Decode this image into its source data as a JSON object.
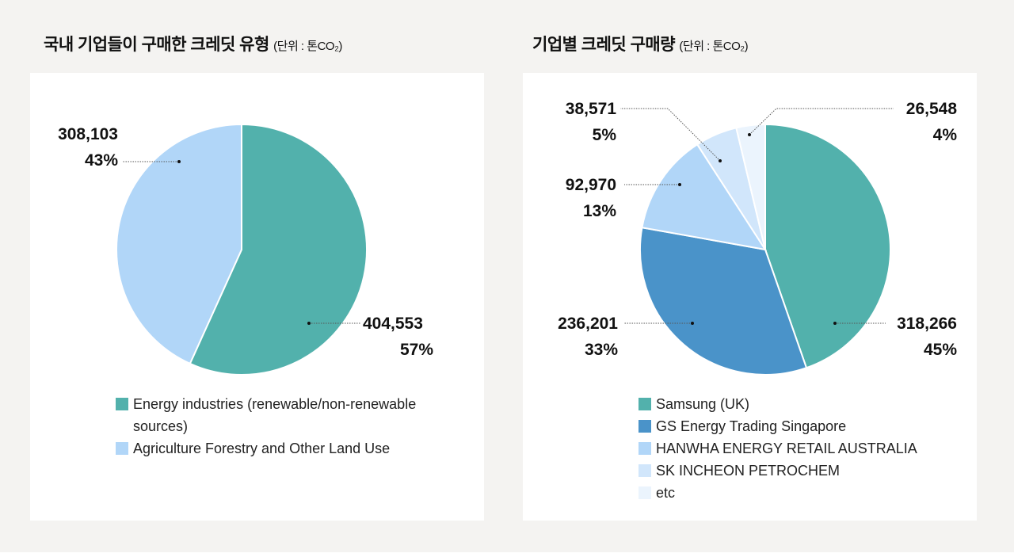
{
  "chart_data": [
    {
      "type": "pie",
      "title": "국내 기업들이 구매한 크레딧 유형",
      "unit": "(단위 : 톤CO₂)",
      "legend_position": "bottom",
      "slices": [
        {
          "name": "Energy industries (renewable/non-renewable sources)",
          "value": 404553,
          "value_label": "404,553",
          "percent_label": "57%",
          "color": "#52b1ac"
        },
        {
          "name": "Agriculture Forestry and Other Land Use",
          "value": 308103,
          "value_label": "308,103",
          "percent_label": "43%",
          "color": "#b1d6f8"
        }
      ]
    },
    {
      "type": "pie",
      "title": "기업별 크레딧 구매량",
      "unit": "(단위 : 톤CO₂)",
      "legend_position": "bottom",
      "slices": [
        {
          "name": "Samsung (UK)",
          "value": 318266,
          "value_label": "318,266",
          "percent_label": "45%",
          "color": "#52b1ac"
        },
        {
          "name": "GS Energy Trading Singapore",
          "value": 236201,
          "value_label": "236,201",
          "percent_label": "33%",
          "color": "#4a93c9"
        },
        {
          "name": "HANWHA ENERGY RETAIL AUSTRALIA",
          "value": 92970,
          "value_label": "92,970",
          "percent_label": "13%",
          "color": "#b1d6f8"
        },
        {
          "name": "SK INCHEON PETROCHEM",
          "value": 38571,
          "value_label": "38,571",
          "percent_label": "5%",
          "color": "#d1e6fb"
        },
        {
          "name": "etc",
          "value": 26548,
          "value_label": "26,548",
          "percent_label": "4%",
          "color": "#ebf4fd"
        }
      ]
    }
  ]
}
